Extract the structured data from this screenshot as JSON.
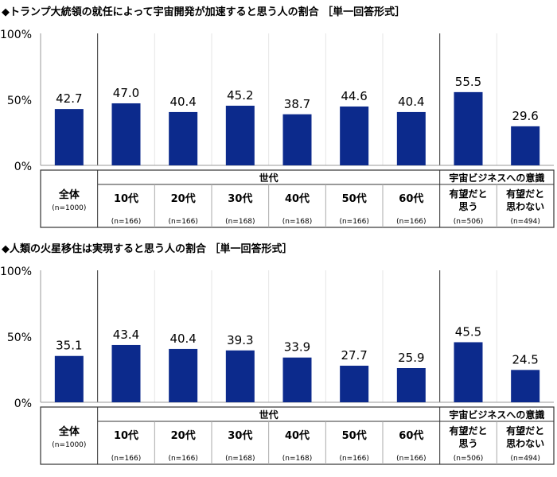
{
  "colors": {
    "bar": "#0c2a8c",
    "grid": "#e6e6e6",
    "line": "#333333"
  },
  "chart_data": [
    {
      "type": "bar",
      "title": "◆トランプ大統領の就任によって宇宙開発が加速すると思う人の割合 ［単一回答形式］",
      "ylim": [
        0,
        100
      ],
      "yticks": [
        "0%",
        "50%",
        "100%"
      ],
      "categories": [
        "全体",
        "10代",
        "20代",
        "30代",
        "40代",
        "50代",
        "60代",
        "有望だと思う",
        "有望だと思わない"
      ],
      "category_lines": [
        [
          "全体"
        ],
        [
          "10代"
        ],
        [
          "20代"
        ],
        [
          "30代"
        ],
        [
          "40代"
        ],
        [
          "50代"
        ],
        [
          "60代"
        ],
        [
          "有望だと",
          "思う"
        ],
        [
          "有望だと",
          "思わない"
        ]
      ],
      "n": [
        "(n=1000)",
        "(n=166)",
        "(n=166)",
        "(n=168)",
        "(n=168)",
        "(n=166)",
        "(n=166)",
        "(n=506)",
        "(n=494)"
      ],
      "groups": [
        {
          "label": "世代",
          "from": 1,
          "to": 6
        },
        {
          "label": "宇宙ビジネスへの意識",
          "from": 7,
          "to": 8
        }
      ],
      "values": [
        42.7,
        47.0,
        40.4,
        45.2,
        38.7,
        44.6,
        40.4,
        55.5,
        29.6
      ],
      "grid": true
    },
    {
      "type": "bar",
      "title": "◆人類の火星移住は実現すると思う人の割合 ［単一回答形式］",
      "ylim": [
        0,
        100
      ],
      "yticks": [
        "0%",
        "50%",
        "100%"
      ],
      "categories": [
        "全体",
        "10代",
        "20代",
        "30代",
        "40代",
        "50代",
        "60代",
        "有望だと思う",
        "有望だと思わない"
      ],
      "category_lines": [
        [
          "全体"
        ],
        [
          "10代"
        ],
        [
          "20代"
        ],
        [
          "30代"
        ],
        [
          "40代"
        ],
        [
          "50代"
        ],
        [
          "60代"
        ],
        [
          "有望だと",
          "思う"
        ],
        [
          "有望だと",
          "思わない"
        ]
      ],
      "n": [
        "(n=1000)",
        "(n=166)",
        "(n=166)",
        "(n=168)",
        "(n=168)",
        "(n=166)",
        "(n=166)",
        "(n=506)",
        "(n=494)"
      ],
      "groups": [
        {
          "label": "世代",
          "from": 1,
          "to": 6
        },
        {
          "label": "宇宙ビジネスへの意識",
          "from": 7,
          "to": 8
        }
      ],
      "values": [
        35.1,
        43.4,
        40.4,
        39.3,
        33.9,
        27.7,
        25.9,
        45.5,
        24.5
      ],
      "grid": true
    }
  ]
}
